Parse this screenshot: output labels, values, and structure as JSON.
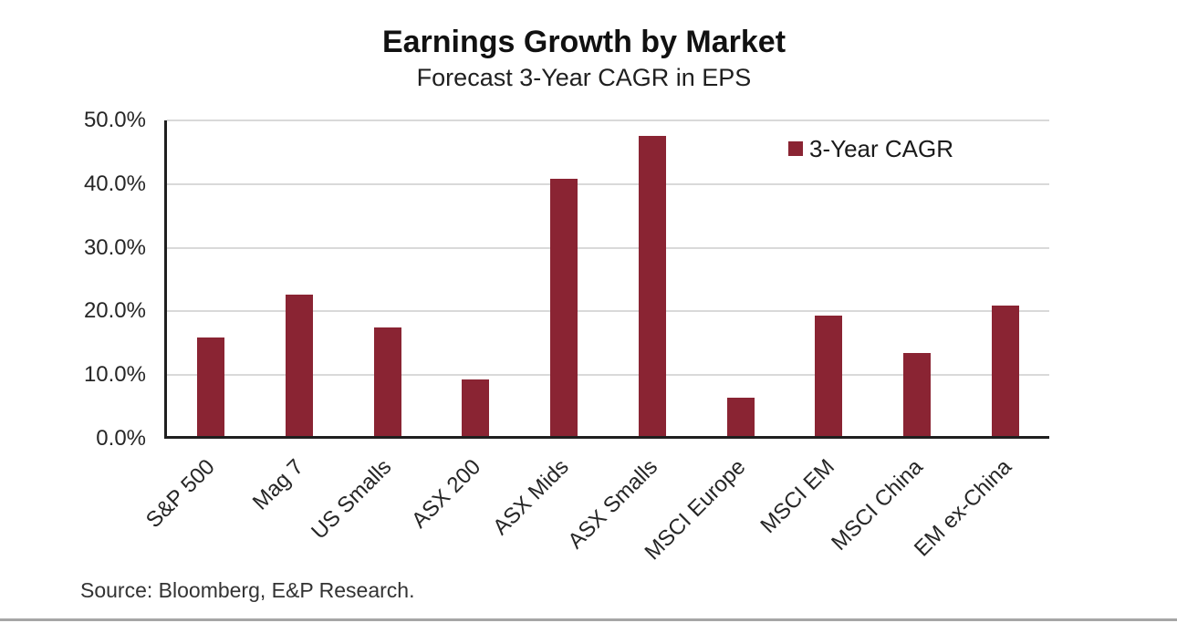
{
  "chart_data": {
    "type": "bar",
    "title": "Earnings Growth by Market",
    "subtitle": "Forecast 3-Year CAGR in EPS",
    "categories": [
      "S&P 500",
      "Mag 7",
      "US Smalls",
      "ASX 200",
      "ASX Mids",
      "ASX Smalls",
      "MSCI Europe",
      "MSCI EM",
      "MSCI China",
      "EM ex-China"
    ],
    "series": [
      {
        "name": "3-Year CAGR",
        "values": [
          15.5,
          22.2,
          17.0,
          8.9,
          40.4,
          47.2,
          6.0,
          18.9,
          13.1,
          20.5
        ]
      }
    ],
    "xlabel": "",
    "ylabel": "",
    "ylim": [
      0,
      50
    ],
    "ytick_labels": [
      "0.0%",
      "10.0%",
      "20.0%",
      "30.0%",
      "40.0%",
      "50.0%"
    ],
    "grid": true,
    "legend": {
      "label": "3-Year CAGR",
      "position": "top-right"
    },
    "colors": {
      "bar": "#8A2433",
      "gridline": "#D9D9D9",
      "axis": "#1F1F1F",
      "text": "#1A1A1A"
    }
  },
  "footer": {
    "source": "Source: Bloomberg,  E&P Research."
  }
}
